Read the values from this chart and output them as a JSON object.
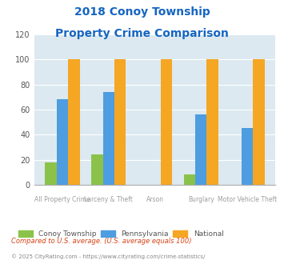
{
  "title_line1": "2018 Conoy Township",
  "title_line2": "Property Crime Comparison",
  "categories": [
    "All Property Crime",
    "Larceny & Theft",
    "Arson",
    "Burglary",
    "Motor Vehicle Theft"
  ],
  "series": {
    "Conoy Township": [
      18,
      24,
      0,
      8,
      0
    ],
    "Pennsylvania": [
      68,
      74,
      0,
      56,
      45
    ],
    "National": [
      100,
      100,
      100,
      100,
      100
    ]
  },
  "colors": {
    "Conoy Township": "#8bc34a",
    "Pennsylvania": "#4d9de0",
    "National": "#f5a623"
  },
  "ylim": [
    0,
    120
  ],
  "yticks": [
    0,
    20,
    40,
    60,
    80,
    100,
    120
  ],
  "plot_bg": "#dce9f0",
  "title_color": "#1565c0",
  "xlabel_color": "#9e9e9e",
  "legend_label_color": "#555555",
  "footnote1": "Compared to U.S. average. (U.S. average equals 100)",
  "footnote2": "© 2025 CityRating.com - https://www.cityrating.com/crime-statistics/",
  "footnote1_color": "#d84315",
  "footnote2_color": "#888888",
  "bar_width": 0.25
}
